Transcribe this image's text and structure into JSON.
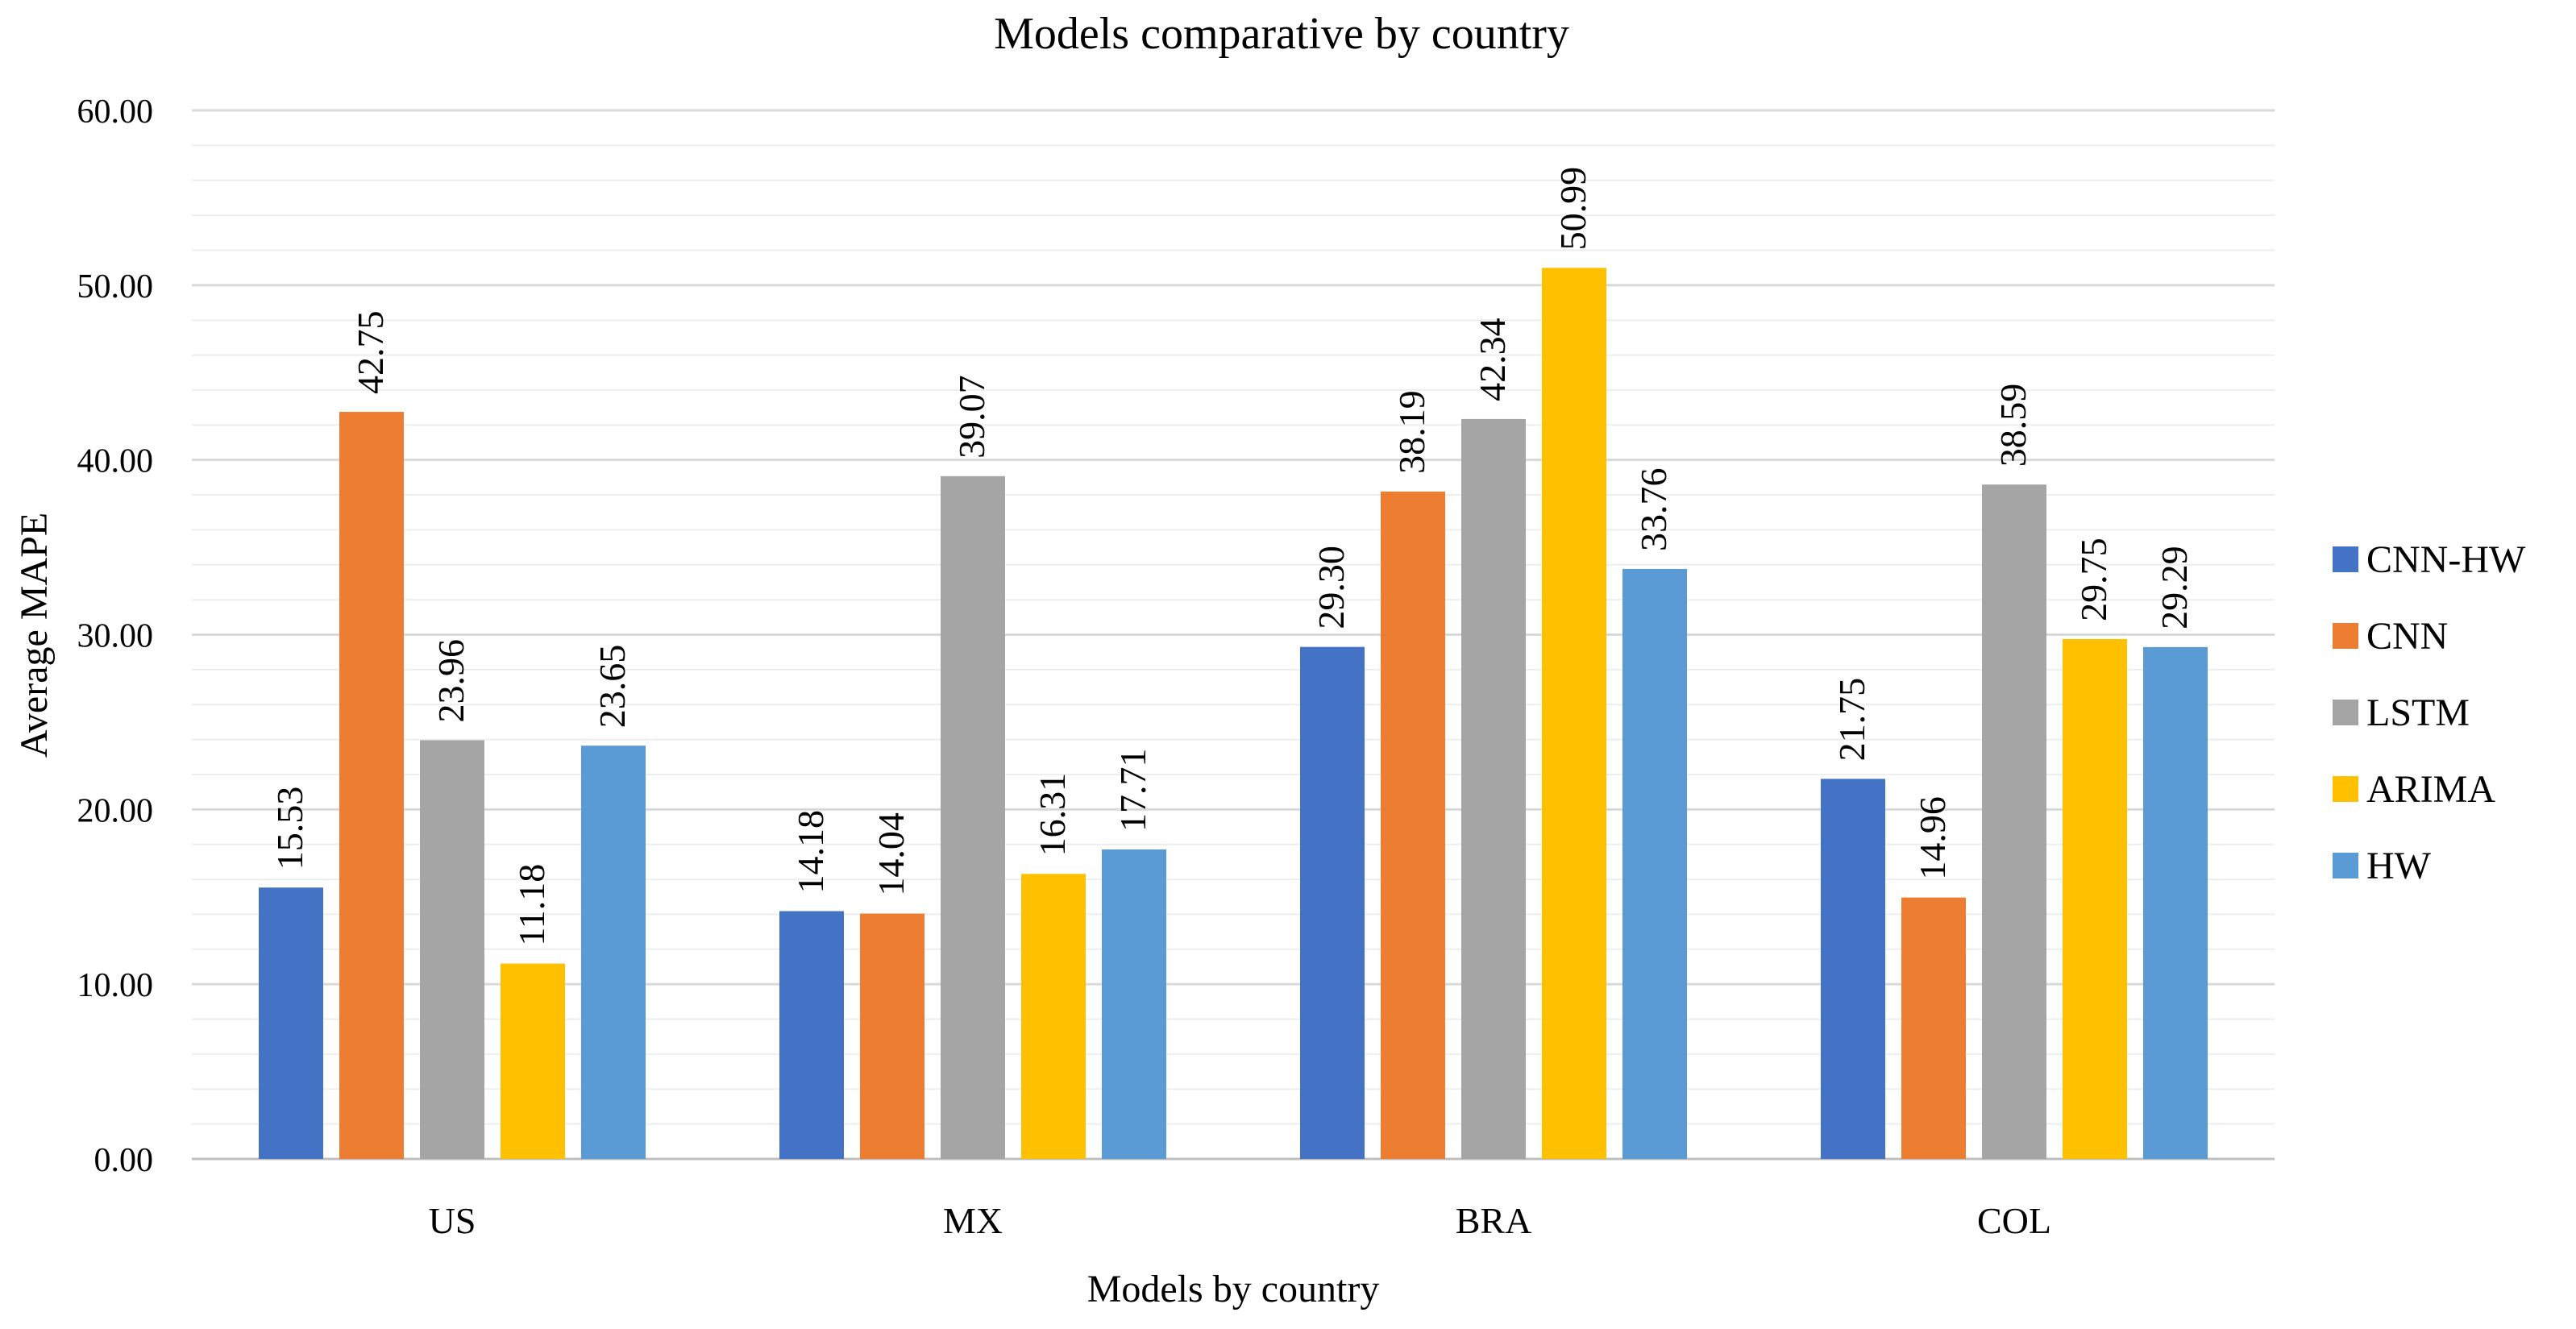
{
  "chart_data": {
    "type": "bar",
    "title": "Models comparative by country",
    "xlabel": "Models by country",
    "ylabel": "Average MAPE",
    "ylim": [
      0,
      60
    ],
    "yticks": [
      "0.00",
      "10.00",
      "20.00",
      "30.00",
      "40.00",
      "50.00",
      "60.00"
    ],
    "grid": true,
    "legend_position": "right",
    "categories": [
      "US",
      "MX",
      "BRA",
      "COL"
    ],
    "series": [
      {
        "name": "CNN-HW",
        "color": "#4472C4",
        "values": [
          15.53,
          14.18,
          29.3,
          21.75
        ],
        "labels": [
          "15.53",
          "14.18",
          "29.30",
          "21.75"
        ]
      },
      {
        "name": "CNN",
        "color": "#ED7D31",
        "values": [
          42.75,
          14.04,
          38.19,
          14.96
        ],
        "labels": [
          "42.75",
          "14.04",
          "38.19",
          "14.96"
        ]
      },
      {
        "name": "LSTM",
        "color": "#A5A5A5",
        "values": [
          23.96,
          39.07,
          42.34,
          38.59
        ],
        "labels": [
          "23.96",
          "39.07",
          "42.34",
          "38.59"
        ]
      },
      {
        "name": "ARIMA",
        "color": "#FFC000",
        "values": [
          11.18,
          16.31,
          50.99,
          29.75
        ],
        "labels": [
          "11.18",
          "16.31",
          "50.99",
          "29.75"
        ]
      },
      {
        "name": "HW",
        "color": "#5B9BD5",
        "values": [
          23.65,
          17.71,
          33.76,
          29.29
        ],
        "labels": [
          "23.65",
          "17.71",
          "33.76",
          "29.29"
        ]
      }
    ]
  }
}
